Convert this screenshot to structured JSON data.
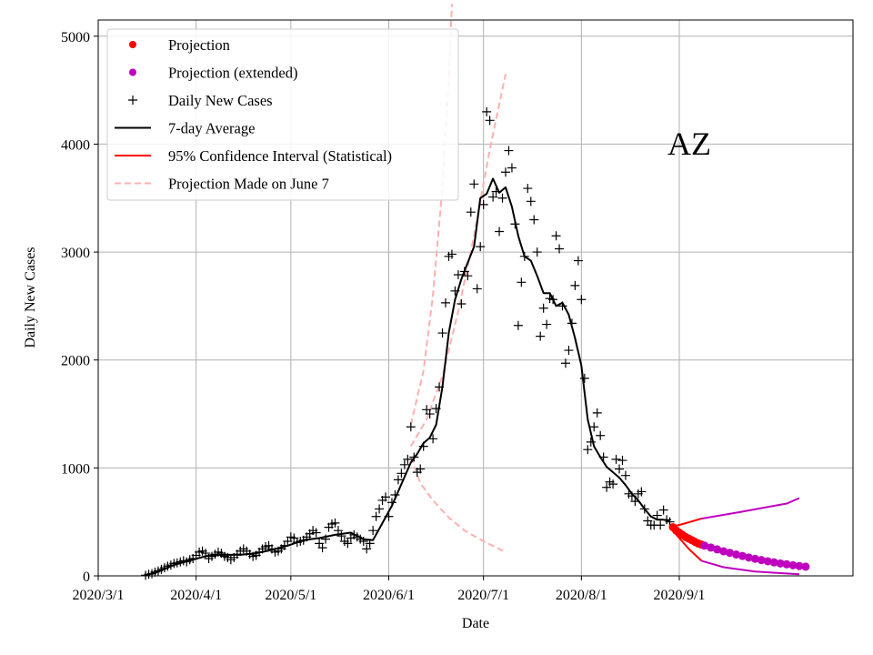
{
  "chart_data": {
    "type": "line",
    "title": "AZ",
    "xlabel": "Date",
    "ylabel": "Daily New Cases",
    "xlim": [
      "2020-03-01",
      "2020-10-26"
    ],
    "ylim": [
      0,
      5150
    ],
    "x_ticks": [
      "2020/3/1",
      "2020/4/1",
      "2020/5/1",
      "2020/6/1",
      "2020/7/1",
      "2020/8/1",
      "2020/9/1"
    ],
    "y_ticks": [
      0,
      1000,
      2000,
      3000,
      4000,
      5000
    ],
    "grid": true,
    "legend_position": "top-left",
    "legend": [
      {
        "label": "Projection",
        "style": "dot",
        "color": "#ff0000"
      },
      {
        "label": "Projection (extended)",
        "style": "dot",
        "color": "#bf00bf"
      },
      {
        "label": "Daily New Cases",
        "style": "plus",
        "color": "#000000"
      },
      {
        "label": "7-day Average",
        "style": "line",
        "color": "#000000"
      },
      {
        "label": "95% Confidence Interval (Statistical)",
        "style": "line",
        "color": "#ff0000"
      },
      {
        "label": "Projection Made on June 7",
        "style": "dashed",
        "color": "#ffb0b0"
      }
    ],
    "daily_new_cases": [
      [
        "2020-03-16",
        5
      ],
      [
        "2020-03-17",
        15
      ],
      [
        "2020-03-18",
        20
      ],
      [
        "2020-03-19",
        35
      ],
      [
        "2020-03-20",
        45
      ],
      [
        "2020-03-21",
        60
      ],
      [
        "2020-03-22",
        75
      ],
      [
        "2020-03-23",
        90
      ],
      [
        "2020-03-24",
        100
      ],
      [
        "2020-03-25",
        115
      ],
      [
        "2020-03-26",
        120
      ],
      [
        "2020-03-27",
        130
      ],
      [
        "2020-03-28",
        140
      ],
      [
        "2020-03-29",
        130
      ],
      [
        "2020-03-30",
        150
      ],
      [
        "2020-03-31",
        160
      ],
      [
        "2020-04-01",
        190
      ],
      [
        "2020-04-02",
        220
      ],
      [
        "2020-04-03",
        230
      ],
      [
        "2020-04-04",
        210
      ],
      [
        "2020-04-05",
        160
      ],
      [
        "2020-04-06",
        180
      ],
      [
        "2020-04-07",
        200
      ],
      [
        "2020-04-08",
        220
      ],
      [
        "2020-04-09",
        210
      ],
      [
        "2020-04-10",
        180
      ],
      [
        "2020-04-11",
        170
      ],
      [
        "2020-04-12",
        150
      ],
      [
        "2020-04-13",
        170
      ],
      [
        "2020-04-14",
        200
      ],
      [
        "2020-04-15",
        230
      ],
      [
        "2020-04-16",
        250
      ],
      [
        "2020-04-17",
        230
      ],
      [
        "2020-04-18",
        200
      ],
      [
        "2020-04-19",
        180
      ],
      [
        "2020-04-20",
        190
      ],
      [
        "2020-04-21",
        220
      ],
      [
        "2020-04-22",
        250
      ],
      [
        "2020-04-23",
        270
      ],
      [
        "2020-04-24",
        280
      ],
      [
        "2020-04-25",
        250
      ],
      [
        "2020-04-26",
        220
      ],
      [
        "2020-04-27",
        230
      ],
      [
        "2020-04-28",
        250
      ],
      [
        "2020-04-29",
        280
      ],
      [
        "2020-04-30",
        320
      ],
      [
        "2020-05-01",
        360
      ],
      [
        "2020-05-02",
        350
      ],
      [
        "2020-05-03",
        310
      ],
      [
        "2020-05-04",
        320
      ],
      [
        "2020-05-05",
        330
      ],
      [
        "2020-05-06",
        360
      ],
      [
        "2020-05-07",
        390
      ],
      [
        "2020-05-08",
        420
      ],
      [
        "2020-05-09",
        400
      ],
      [
        "2020-05-10",
        300
      ],
      [
        "2020-05-11",
        260
      ],
      [
        "2020-05-12",
        340
      ],
      [
        "2020-05-13",
        450
      ],
      [
        "2020-05-14",
        480
      ],
      [
        "2020-05-15",
        490
      ],
      [
        "2020-05-16",
        420
      ],
      [
        "2020-05-17",
        370
      ],
      [
        "2020-05-18",
        320
      ],
      [
        "2020-05-19",
        300
      ],
      [
        "2020-05-20",
        350
      ],
      [
        "2020-05-21",
        380
      ],
      [
        "2020-05-22",
        360
      ],
      [
        "2020-05-23",
        340
      ],
      [
        "2020-05-24",
        320
      ],
      [
        "2020-05-25",
        250
      ],
      [
        "2020-05-26",
        300
      ],
      [
        "2020-05-27",
        420
      ],
      [
        "2020-05-28",
        550
      ],
      [
        "2020-05-29",
        620
      ],
      [
        "2020-05-30",
        700
      ],
      [
        "2020-05-31",
        730
      ],
      [
        "2020-06-01",
        550
      ],
      [
        "2020-06-02",
        680
      ],
      [
        "2020-06-03",
        750
      ],
      [
        "2020-06-04",
        890
      ],
      [
        "2020-06-05",
        950
      ],
      [
        "2020-06-06",
        1030
      ],
      [
        "2020-06-07",
        1080
      ],
      [
        "2020-06-08",
        1380
      ],
      [
        "2020-06-09",
        1100
      ],
      [
        "2020-06-10",
        960
      ],
      [
        "2020-06-11",
        990
      ],
      [
        "2020-06-12",
        1200
      ],
      [
        "2020-06-13",
        1540
      ],
      [
        "2020-06-14",
        1500
      ],
      [
        "2020-06-15",
        1270
      ],
      [
        "2020-06-16",
        1550
      ],
      [
        "2020-06-17",
        1750
      ],
      [
        "2020-06-18",
        2250
      ],
      [
        "2020-06-19",
        2530
      ],
      [
        "2020-06-20",
        2960
      ],
      [
        "2020-06-21",
        2980
      ],
      [
        "2020-06-22",
        2640
      ],
      [
        "2020-06-23",
        2790
      ],
      [
        "2020-06-24",
        2520
      ],
      [
        "2020-06-25",
        2820
      ],
      [
        "2020-06-26",
        2780
      ],
      [
        "2020-06-27",
        3370
      ],
      [
        "2020-06-28",
        3630
      ],
      [
        "2020-06-29",
        2660
      ],
      [
        "2020-06-30",
        3050
      ],
      [
        "2020-07-01",
        3440
      ],
      [
        "2020-07-02",
        4300
      ],
      [
        "2020-07-03",
        4220
      ],
      [
        "2020-07-04",
        3510
      ],
      [
        "2020-07-05",
        3560
      ],
      [
        "2020-07-06",
        3190
      ],
      [
        "2020-07-07",
        3500
      ],
      [
        "2020-07-08",
        3740
      ],
      [
        "2020-07-09",
        3940
      ],
      [
        "2020-07-10",
        3780
      ],
      [
        "2020-07-11",
        3260
      ],
      [
        "2020-07-12",
        2320
      ],
      [
        "2020-07-13",
        2720
      ],
      [
        "2020-07-14",
        2960
      ],
      [
        "2020-07-15",
        3590
      ],
      [
        "2020-07-16",
        3470
      ],
      [
        "2020-07-17",
        3300
      ],
      [
        "2020-07-18",
        3000
      ],
      [
        "2020-07-19",
        2220
      ],
      [
        "2020-07-20",
        2480
      ],
      [
        "2020-07-21",
        2330
      ],
      [
        "2020-07-22",
        2570
      ],
      [
        "2020-07-23",
        2560
      ],
      [
        "2020-07-24",
        3150
      ],
      [
        "2020-07-25",
        3030
      ],
      [
        "2020-07-26",
        2500
      ],
      [
        "2020-07-27",
        1970
      ],
      [
        "2020-07-28",
        2090
      ],
      [
        "2020-07-29",
        2340
      ],
      [
        "2020-07-30",
        2690
      ],
      [
        "2020-07-31",
        2920
      ],
      [
        "2020-08-01",
        2560
      ],
      [
        "2020-08-02",
        1830
      ],
      [
        "2020-08-03",
        1170
      ],
      [
        "2020-08-04",
        1240
      ],
      [
        "2020-08-05",
        1380
      ],
      [
        "2020-08-06",
        1510
      ],
      [
        "2020-08-07",
        1300
      ],
      [
        "2020-08-08",
        1100
      ],
      [
        "2020-08-09",
        820
      ],
      [
        "2020-08-10",
        870
      ],
      [
        "2020-08-11",
        850
      ],
      [
        "2020-08-12",
        1080
      ],
      [
        "2020-08-13",
        990
      ],
      [
        "2020-08-14",
        1070
      ],
      [
        "2020-08-15",
        930
      ],
      [
        "2020-08-16",
        760
      ],
      [
        "2020-08-17",
        740
      ],
      [
        "2020-08-18",
        690
      ],
      [
        "2020-08-19",
        760
      ],
      [
        "2020-08-20",
        780
      ],
      [
        "2020-08-21",
        620
      ],
      [
        "2020-08-22",
        510
      ],
      [
        "2020-08-23",
        470
      ],
      [
        "2020-08-24",
        470
      ],
      [
        "2020-08-25",
        560
      ],
      [
        "2020-08-26",
        470
      ],
      [
        "2020-08-27",
        610
      ],
      [
        "2020-08-28",
        520
      ],
      [
        "2020-08-29",
        500
      ]
    ],
    "seven_day_average": [
      [
        "2020-03-16",
        5
      ],
      [
        "2020-03-20",
        40
      ],
      [
        "2020-03-25",
        100
      ],
      [
        "2020-03-31",
        150
      ],
      [
        "2020-04-05",
        190
      ],
      [
        "2020-04-10",
        195
      ],
      [
        "2020-04-15",
        195
      ],
      [
        "2020-04-20",
        210
      ],
      [
        "2020-04-25",
        240
      ],
      [
        "2020-04-30",
        280
      ],
      [
        "2020-05-05",
        330
      ],
      [
        "2020-05-10",
        350
      ],
      [
        "2020-05-15",
        380
      ],
      [
        "2020-05-20",
        400
      ],
      [
        "2020-05-24",
        340
      ],
      [
        "2020-05-27",
        330
      ],
      [
        "2020-05-30",
        490
      ],
      [
        "2020-06-02",
        650
      ],
      [
        "2020-06-05",
        850
      ],
      [
        "2020-06-08",
        1050
      ],
      [
        "2020-06-10",
        1130
      ],
      [
        "2020-06-12",
        1230
      ],
      [
        "2020-06-14",
        1280
      ],
      [
        "2020-06-16",
        1400
      ],
      [
        "2020-06-18",
        1750
      ],
      [
        "2020-06-20",
        2250
      ],
      [
        "2020-06-22",
        2560
      ],
      [
        "2020-06-24",
        2750
      ],
      [
        "2020-06-26",
        2900
      ],
      [
        "2020-06-28",
        3050
      ],
      [
        "2020-06-30",
        3500
      ],
      [
        "2020-07-02",
        3540
      ],
      [
        "2020-07-04",
        3680
      ],
      [
        "2020-07-06",
        3550
      ],
      [
        "2020-07-08",
        3600
      ],
      [
        "2020-07-10",
        3420
      ],
      [
        "2020-07-12",
        3150
      ],
      [
        "2020-07-14",
        2960
      ],
      [
        "2020-07-16",
        2920
      ],
      [
        "2020-07-18",
        2780
      ],
      [
        "2020-07-20",
        2620
      ],
      [
        "2020-07-22",
        2620
      ],
      [
        "2020-07-24",
        2500
      ],
      [
        "2020-07-26",
        2530
      ],
      [
        "2020-07-28",
        2420
      ],
      [
        "2020-07-30",
        2200
      ],
      [
        "2020-08-01",
        1950
      ],
      [
        "2020-08-03",
        1450
      ],
      [
        "2020-08-05",
        1200
      ],
      [
        "2020-08-07",
        1100
      ],
      [
        "2020-08-09",
        1010
      ],
      [
        "2020-08-11",
        960
      ],
      [
        "2020-08-13",
        910
      ],
      [
        "2020-08-15",
        840
      ],
      [
        "2020-08-17",
        760
      ],
      [
        "2020-08-19",
        700
      ],
      [
        "2020-08-21",
        620
      ],
      [
        "2020-08-23",
        550
      ],
      [
        "2020-08-25",
        520
      ],
      [
        "2020-08-27",
        520
      ],
      [
        "2020-08-29",
        510
      ]
    ],
    "projection": [
      [
        "2020-08-30",
        450
      ],
      [
        "2020-08-31",
        420
      ],
      [
        "2020-09-01",
        400
      ],
      [
        "2020-09-02",
        380
      ],
      [
        "2020-09-03",
        360
      ],
      [
        "2020-09-04",
        345
      ],
      [
        "2020-09-05",
        330
      ],
      [
        "2020-09-06",
        315
      ],
      [
        "2020-09-07",
        300
      ],
      [
        "2020-09-08",
        290
      ]
    ],
    "projection_extended": [
      [
        "2020-09-09",
        280
      ],
      [
        "2020-09-11",
        262
      ],
      [
        "2020-09-13",
        245
      ],
      [
        "2020-09-15",
        228
      ],
      [
        "2020-09-17",
        213
      ],
      [
        "2020-09-19",
        198
      ],
      [
        "2020-09-21",
        184
      ],
      [
        "2020-09-23",
        170
      ],
      [
        "2020-09-25",
        158
      ],
      [
        "2020-09-27",
        146
      ],
      [
        "2020-09-29",
        135
      ],
      [
        "2020-10-01",
        125
      ],
      [
        "2020-10-03",
        115
      ],
      [
        "2020-10-05",
        107
      ],
      [
        "2020-10-07",
        98
      ],
      [
        "2020-10-09",
        91
      ],
      [
        "2020-10-11",
        85
      ]
    ],
    "confidence_interval": {
      "upper": [
        [
          "2020-08-29",
          450
        ],
        [
          "2020-09-02",
          480
        ],
        [
          "2020-09-08",
          530
        ],
        [
          "2020-09-20",
          590
        ],
        [
          "2020-10-05",
          670
        ],
        [
          "2020-10-09",
          720
        ]
      ],
      "lower": [
        [
          "2020-08-29",
          450
        ],
        [
          "2020-09-01",
          350
        ],
        [
          "2020-09-04",
          250
        ],
        [
          "2020-09-08",
          140
        ],
        [
          "2020-09-15",
          80
        ],
        [
          "2020-09-25",
          40
        ],
        [
          "2020-10-09",
          15
        ]
      ],
      "extended_from": "2020-09-08"
    },
    "projection_june7": {
      "upper": [
        [
          "2020-06-08",
          1400
        ],
        [
          "2020-06-12",
          1900
        ],
        [
          "2020-06-15",
          2600
        ],
        [
          "2020-06-18",
          3600
        ],
        [
          "2020-06-20",
          4600
        ],
        [
          "2020-06-21",
          5300
        ]
      ],
      "middle": [
        [
          "2020-06-08",
          1200
        ],
        [
          "2020-06-13",
          1450
        ],
        [
          "2020-06-18",
          1850
        ],
        [
          "2020-06-23",
          2450
        ],
        [
          "2020-06-28",
          3150
        ],
        [
          "2020-07-03",
          3950
        ],
        [
          "2020-07-08",
          4650
        ]
      ],
      "lower": [
        [
          "2020-06-08",
          1100
        ],
        [
          "2020-06-11",
          860
        ],
        [
          "2020-06-15",
          700
        ],
        [
          "2020-06-20",
          540
        ],
        [
          "2020-06-25",
          420
        ],
        [
          "2020-07-01",
          320
        ],
        [
          "2020-07-08",
          220
        ]
      ]
    }
  }
}
